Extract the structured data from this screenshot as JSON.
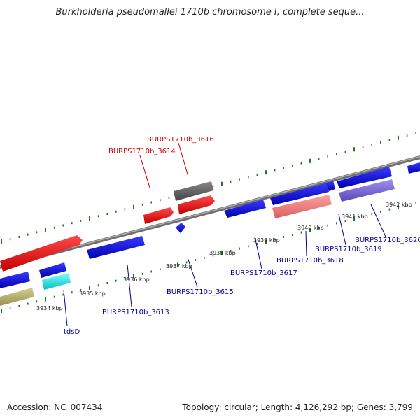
{
  "title": "Burkholderia pseudomallei 1710b chromosome I, complete seque...",
  "footer": {
    "accession": "Accession: NC_007434",
    "summary": "Topology: circular; Length: 4,126,292 bp; Genes: 3,799"
  },
  "tick_labels": [
    "3934 kbp",
    "3935 kbp",
    "3936 kbp",
    "3937 kbp",
    "3938 kbp",
    "3939 kbp",
    "3940 kbp",
    "3941 kbp",
    "3942 kbp"
  ],
  "gene_labels": {
    "burps_3616": "BURPS1710b_3616",
    "burps_3614": "BURPS1710b_3614",
    "burps_3615": "BURPS1710b_3615",
    "burps_3613": "BURPS1710b_3613",
    "burps_3617": "BURPS1710b_3617",
    "burps_3618": "BURPS1710b_3618",
    "burps_3619": "BURPS1710b_3619",
    "burps_3620": "BURPS1710b_3620",
    "tdsD": "tdsD"
  },
  "colors": {
    "backbone": "#888888",
    "ticks": "#1f7a1f",
    "forward_cds": "#ee0000",
    "reverse_cds": "#1a1ae6",
    "pseudo_dark": "#666666",
    "pseudo_light": "#f08080",
    "olive": "#b8b070",
    "cyan": "#00e5e5",
    "purple": "#7a6ad6"
  }
}
